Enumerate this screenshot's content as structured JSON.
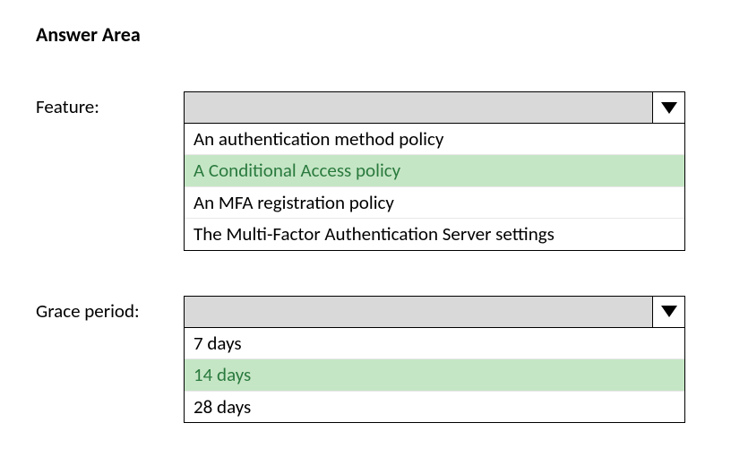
{
  "title": "Answer Area",
  "fields": [
    {
      "label": "Feature:",
      "options": [
        {
          "text": "An authentication method policy",
          "selected": false
        },
        {
          "text": "A Conditional Access policy",
          "selected": true
        },
        {
          "text": "An MFA registration policy",
          "selected": false
        },
        {
          "text": "The Multi-Factor Authentication Server settings",
          "selected": false
        }
      ]
    },
    {
      "label": "Grace period:",
      "options": [
        {
          "text": "7 days",
          "selected": false
        },
        {
          "text": "14 days",
          "selected": true
        },
        {
          "text": "28 days",
          "selected": false
        }
      ]
    }
  ],
  "colors": {
    "background": "#ffffff",
    "text": "#000000",
    "dropdown_header_bg": "#d9d9d9",
    "selected_bg": "#c5e6c5",
    "selected_text": "#2a7a3e",
    "border": "#000000",
    "option_divider": "#e8e8e8"
  }
}
